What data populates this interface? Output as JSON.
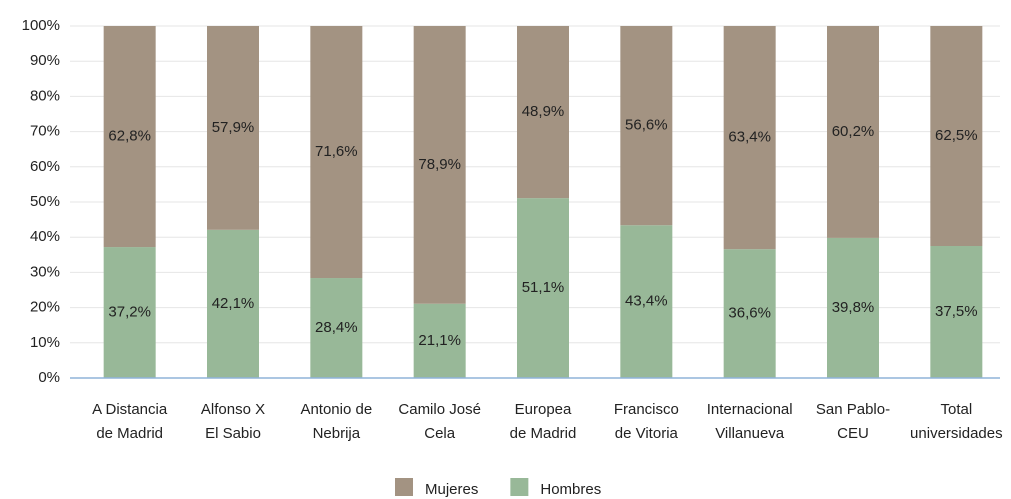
{
  "chart_data": {
    "type": "stacked_bar",
    "categories": [
      [
        "A Distancia",
        "de Madrid"
      ],
      [
        "Alfonso X",
        "El Sabio"
      ],
      [
        "Antonio de",
        "Nebrija"
      ],
      [
        "Camilo José",
        "Cela"
      ],
      [
        "Europea",
        "de Madrid"
      ],
      [
        "Francisco",
        "de Vitoria"
      ],
      [
        "Internacional",
        "Villanueva"
      ],
      [
        "San Pablo-",
        "CEU"
      ],
      [
        "Total",
        "universidades"
      ]
    ],
    "series": [
      {
        "name": "Hombres",
        "color": "#98b898",
        "values": [
          37.2,
          42.1,
          28.4,
          21.1,
          51.1,
          43.4,
          36.6,
          39.8,
          37.5
        ],
        "value_labels": [
          "37,2%",
          "42,1%",
          "28,4%",
          "21,1%",
          "51,1%",
          "43,4%",
          "36,6%",
          "39,8%",
          "37,5%"
        ]
      },
      {
        "name": "Mujeres",
        "color": "#a39382",
        "values": [
          62.8,
          57.9,
          71.6,
          78.9,
          48.9,
          56.6,
          63.4,
          60.2,
          62.5
        ],
        "value_labels": [
          "62,8%",
          "57,9%",
          "71,6%",
          "78,9%",
          "48,9%",
          "56,6%",
          "63,4%",
          "60,2%",
          "62,5%"
        ]
      }
    ],
    "ylim": [
      0,
      100
    ],
    "yticks": [
      {
        "value": 0,
        "label": "0%"
      },
      {
        "value": 10,
        "label": "10%"
      },
      {
        "value": 20,
        "label": "20%"
      },
      {
        "value": 30,
        "label": "30%"
      },
      {
        "value": 40,
        "label": "40%"
      },
      {
        "value": 50,
        "label": "50%"
      },
      {
        "value": 60,
        "label": "60%"
      },
      {
        "value": 70,
        "label": "70%"
      },
      {
        "value": 80,
        "label": "80%"
      },
      {
        "value": 90,
        "label": "90%"
      },
      {
        "value": 100,
        "label": "100%"
      }
    ],
    "grid": true,
    "legend": "bottom"
  }
}
